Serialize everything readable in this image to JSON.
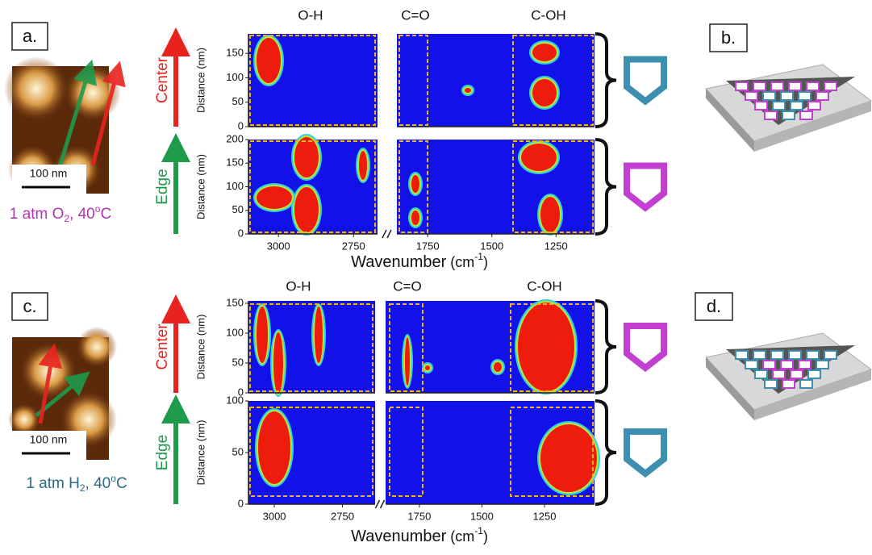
{
  "figures": [
    {
      "label": "a.",
      "scale_bar": "100 nm",
      "condition": {
        "text": "1 atm O",
        "sub": "2",
        "mid": ", 40",
        "sup": "o",
        "end": "C",
        "color": "#b232b8"
      },
      "regions": [
        "O-H",
        "C=O",
        "C-OH"
      ],
      "y_label": "Distance (nm)",
      "x_label": {
        "main": "Wavenumber",
        "unit": "(cm",
        "sup": "-1",
        "close": ")"
      },
      "xlim": [
        [
          3100,
          2670
        ],
        [
          1870,
          1100
        ]
      ],
      "xticks": [
        3000,
        2750,
        1750,
        1500,
        1250
      ],
      "plots": [
        {
          "side": "Center",
          "ylim": [
            0,
            190
          ],
          "yticks": [
            0,
            50,
            100,
            150
          ],
          "icon_color": "#3c8fae"
        },
        {
          "side": "Edge",
          "ylim": [
            0,
            200
          ],
          "yticks": [
            0,
            50,
            100,
            150,
            200
          ],
          "icon_color": "#c23fd2"
        }
      ]
    },
    {
      "label": "c.",
      "scale_bar": "100 nm",
      "condition": {
        "text": "1 atm H",
        "sub": "2",
        "mid": ", 40",
        "sup": "o",
        "end": "C",
        "color": "#2b6a84"
      },
      "regions": [
        "O-H",
        "C=O",
        "C-OH"
      ],
      "y_label": "Distance (nm)",
      "x_label": {
        "main": "Wavenumber",
        "unit": "(cm",
        "sup": "-1",
        "close": ")"
      },
      "xlim": [
        [
          3095,
          2630
        ],
        [
          1885,
          1050
        ]
      ],
      "xticks": [
        3000,
        2750,
        1750,
        1500,
        1250
      ],
      "plots": [
        {
          "side": "Center",
          "ylim": [
            0,
            154
          ],
          "yticks": [
            0,
            50,
            100,
            150
          ],
          "icon_color": "#c23fd2"
        },
        {
          "side": "Edge",
          "ylim": [
            0,
            100
          ],
          "yticks": [
            0,
            50,
            100
          ],
          "icon_color": "#3c8fae"
        }
      ]
    }
  ],
  "schematics": [
    {
      "label": "b."
    },
    {
      "label": "d."
    }
  ]
}
